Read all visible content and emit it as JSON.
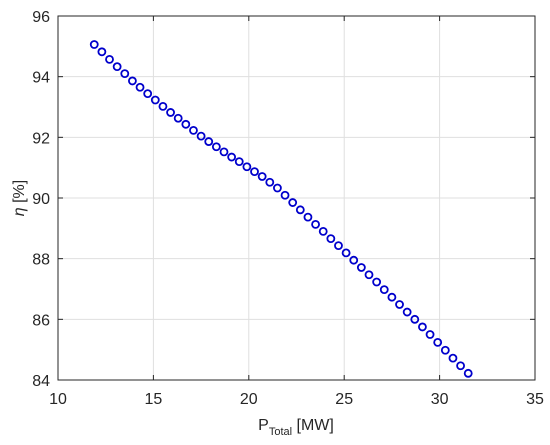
{
  "chart_data": {
    "type": "scatter",
    "title": "",
    "xlabel_main": "P",
    "xlabel_sub": "Total",
    "xlabel_unit": " [MW]",
    "ylabel_main": "η",
    "ylabel_unit": " [%]",
    "xlim": [
      10,
      35
    ],
    "ylim": [
      84,
      96
    ],
    "xticks": [
      10,
      15,
      20,
      25,
      30,
      35
    ],
    "yticks": [
      84,
      86,
      88,
      90,
      92,
      94,
      96
    ],
    "grid": true,
    "marker": "circle",
    "color": "#0000cc",
    "points": [
      [
        11.9,
        95.06
      ],
      [
        12.3,
        94.82
      ],
      [
        12.7,
        94.57
      ],
      [
        13.1,
        94.33
      ],
      [
        13.5,
        94.1
      ],
      [
        13.9,
        93.86
      ],
      [
        14.3,
        93.65
      ],
      [
        14.7,
        93.44
      ],
      [
        15.1,
        93.23
      ],
      [
        15.5,
        93.02
      ],
      [
        15.9,
        92.82
      ],
      [
        16.3,
        92.63
      ],
      [
        16.7,
        92.43
      ],
      [
        17.1,
        92.23
      ],
      [
        17.5,
        92.04
      ],
      [
        17.9,
        91.86
      ],
      [
        18.3,
        91.69
      ],
      [
        18.7,
        91.52
      ],
      [
        19.1,
        91.35
      ],
      [
        19.5,
        91.2
      ],
      [
        19.9,
        91.03
      ],
      [
        20.3,
        90.87
      ],
      [
        20.7,
        90.71
      ],
      [
        21.1,
        90.52
      ],
      [
        21.5,
        90.33
      ],
      [
        21.9,
        90.09
      ],
      [
        22.3,
        89.85
      ],
      [
        22.7,
        89.61
      ],
      [
        23.1,
        89.37
      ],
      [
        23.5,
        89.13
      ],
      [
        23.9,
        88.9
      ],
      [
        24.3,
        88.66
      ],
      [
        24.7,
        88.43
      ],
      [
        25.1,
        88.19
      ],
      [
        25.5,
        87.95
      ],
      [
        25.9,
        87.71
      ],
      [
        26.3,
        87.47
      ],
      [
        26.7,
        87.23
      ],
      [
        27.1,
        86.98
      ],
      [
        27.5,
        86.73
      ],
      [
        27.9,
        86.49
      ],
      [
        28.3,
        86.24
      ],
      [
        28.7,
        86.0
      ],
      [
        29.1,
        85.75
      ],
      [
        29.5,
        85.5
      ],
      [
        29.9,
        85.24
      ],
      [
        30.3,
        84.98
      ],
      [
        30.7,
        84.72
      ],
      [
        31.1,
        84.47
      ],
      [
        31.5,
        84.22
      ]
    ]
  }
}
